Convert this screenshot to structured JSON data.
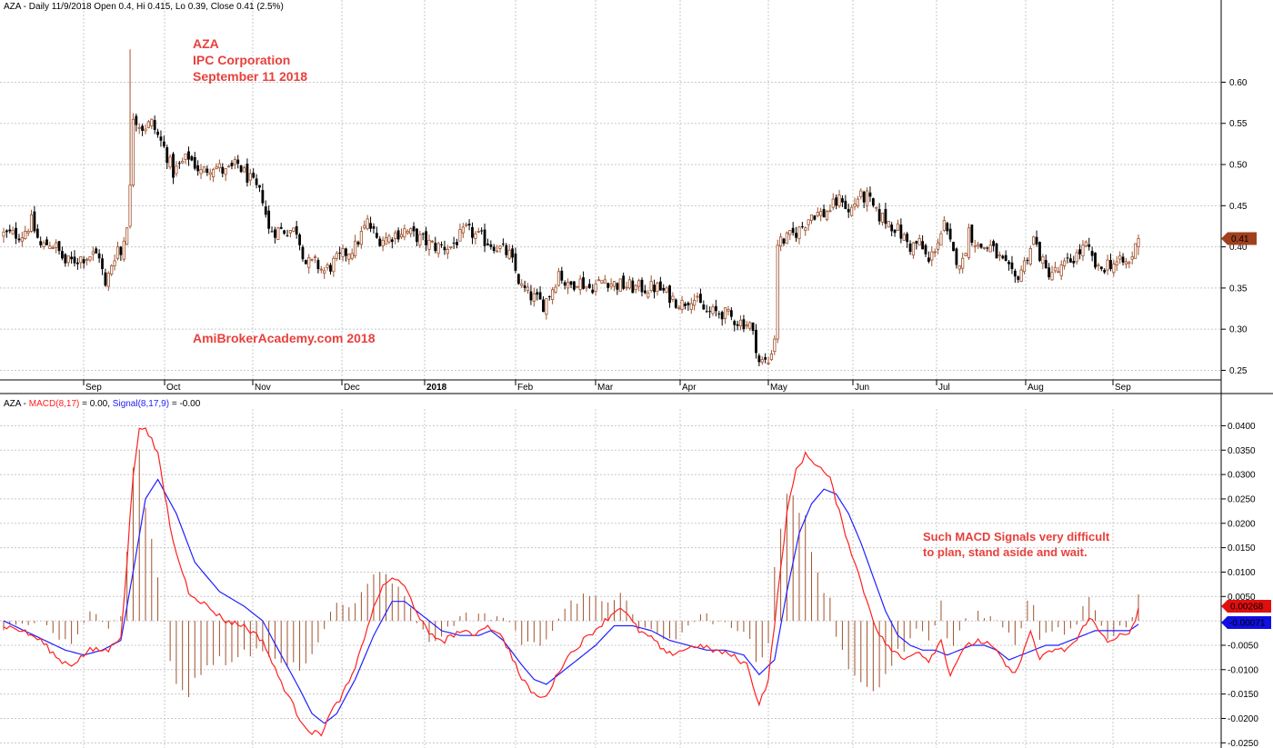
{
  "colors": {
    "candle_up": "#a0522d",
    "candle_down": "#000000",
    "macd": "#ff2020",
    "signal": "#2020ff",
    "histogram": "#a0522d",
    "annotation": "#e8403c",
    "grid": "#c8c8c8",
    "price_tag": "#a0401e",
    "macd_tag": "#e01010",
    "signal_tag": "#1010e0"
  },
  "header": {
    "price_text": "AZA - Daily 11/9/2018 Open 0.4, Hi 0.415, Lo 0.39, Close 0.41 (2.5%)",
    "macd_prefix": "AZA - ",
    "macd_label": "MACD(8,17)",
    "macd_value_text": " = 0.00, ",
    "signal_label": "Signal(8,17,9)",
    "signal_value_text": " = -0.00"
  },
  "annotations": {
    "title_lines": [
      "AZA",
      "IPC Corporation",
      "September 11 2018"
    ],
    "watermark": "AmiBrokerAcademy.com  2018",
    "macd_note_lines": [
      "Such MACD Signals very difficult",
      "to plan, stand aside and wait."
    ]
  },
  "tags": {
    "price": "0.41",
    "macd": "0.00268",
    "signal": "-0.00071"
  },
  "chart_data": [
    {
      "type": "candlestick",
      "title": "AZA - Daily 11/9/2018 Open 0.4, Hi 0.415, Lo 0.39, Close 0.41 (2.5%)",
      "ylim": [
        0.245,
        0.68
      ],
      "y_ticks": [
        "0.25",
        "0.30",
        "0.35",
        "0.40",
        "0.45",
        "0.50",
        "0.55",
        "0.60"
      ],
      "grid": true,
      "x_month_labels": [
        "Sep",
        "Oct",
        "Nov",
        "Dec",
        "2018",
        "Feb",
        "Mar",
        "Apr",
        "May",
        "Jun",
        "Jul",
        "Aug",
        "Sep"
      ],
      "close_anchors": [
        [
          0,
          0.415
        ],
        [
          6,
          0.415
        ],
        [
          9,
          0.43
        ],
        [
          12,
          0.4
        ],
        [
          15,
          0.405
        ],
        [
          17,
          0.4
        ],
        [
          20,
          0.38
        ],
        [
          24,
          0.385
        ],
        [
          28,
          0.39
        ],
        [
          31,
          0.39
        ],
        [
          33,
          0.35
        ],
        [
          35,
          0.38
        ],
        [
          37,
          0.4
        ],
        [
          38,
          0.39
        ],
        [
          40,
          0.43
        ],
        [
          41,
          0.47
        ],
        [
          42,
          0.56
        ],
        [
          45,
          0.545
        ],
        [
          48,
          0.55
        ],
        [
          52,
          0.52
        ],
        [
          55,
          0.49
        ],
        [
          60,
          0.51
        ],
        [
          64,
          0.49
        ],
        [
          68,
          0.5
        ],
        [
          72,
          0.49
        ],
        [
          76,
          0.5
        ],
        [
          80,
          0.48
        ],
        [
          84,
          0.46
        ],
        [
          86,
          0.42
        ],
        [
          90,
          0.42
        ],
        [
          95,
          0.42
        ],
        [
          98,
          0.38
        ],
        [
          101,
          0.38
        ],
        [
          104,
          0.37
        ],
        [
          110,
          0.39
        ],
        [
          114,
          0.4
        ],
        [
          118,
          0.43
        ],
        [
          121,
          0.41
        ],
        [
          124,
          0.41
        ],
        [
          130,
          0.42
        ],
        [
          135,
          0.41
        ],
        [
          140,
          0.4
        ],
        [
          145,
          0.4
        ],
        [
          150,
          0.42
        ],
        [
          155,
          0.41
        ],
        [
          160,
          0.4
        ],
        [
          164,
          0.39
        ],
        [
          168,
          0.35
        ],
        [
          171,
          0.34
        ],
        [
          175,
          0.33
        ],
        [
          178,
          0.35
        ],
        [
          180,
          0.37
        ],
        [
          183,
          0.35
        ],
        [
          186,
          0.36
        ],
        [
          190,
          0.35
        ],
        [
          195,
          0.36
        ],
        [
          198,
          0.355
        ],
        [
          205,
          0.35
        ],
        [
          212,
          0.35
        ],
        [
          216,
          0.34
        ],
        [
          220,
          0.33
        ],
        [
          223,
          0.34
        ],
        [
          228,
          0.32
        ],
        [
          233,
          0.32
        ],
        [
          238,
          0.31
        ],
        [
          242,
          0.305
        ],
        [
          244,
          0.28
        ],
        [
          245,
          0.26
        ],
        [
          248,
          0.26
        ],
        [
          250,
          0.29
        ],
        [
          251,
          0.405
        ],
        [
          254,
          0.41
        ],
        [
          258,
          0.42
        ],
        [
          262,
          0.44
        ],
        [
          266,
          0.44
        ],
        [
          269,
          0.45
        ],
        [
          272,
          0.46
        ],
        [
          274,
          0.44
        ],
        [
          277,
          0.46
        ],
        [
          280,
          0.46
        ],
        [
          283,
          0.44
        ],
        [
          287,
          0.43
        ],
        [
          290,
          0.42
        ],
        [
          294,
          0.4
        ],
        [
          297,
          0.405
        ],
        [
          300,
          0.38
        ],
        [
          302,
          0.4
        ],
        [
          305,
          0.425
        ],
        [
          308,
          0.39
        ],
        [
          311,
          0.38
        ],
        [
          313,
          0.42
        ],
        [
          316,
          0.4
        ],
        [
          320,
          0.4
        ],
        [
          324,
          0.38
        ],
        [
          328,
          0.36
        ],
        [
          331,
          0.38
        ],
        [
          334,
          0.41
        ],
        [
          338,
          0.37
        ],
        [
          342,
          0.37
        ],
        [
          345,
          0.38
        ],
        [
          348,
          0.39
        ],
        [
          351,
          0.4
        ],
        [
          355,
          0.37
        ],
        [
          358,
          0.38
        ],
        [
          361,
          0.38
        ],
        [
          365,
          0.38
        ],
        [
          367,
          0.4
        ],
        [
          368,
          0.41
        ]
      ],
      "last": {
        "date": "11/9/2018",
        "open": 0.4,
        "high": 0.415,
        "low": 0.39,
        "close": 0.41,
        "change_pct": 2.5
      }
    },
    {
      "type": "line",
      "title": "AZA - MACD(8,17) = 0.00, Signal(8,17,9) = -0.00",
      "ylim": [
        -0.0255,
        0.0425
      ],
      "y_ticks": [
        "0.0400",
        "0.0350",
        "0.0300",
        "0.0250",
        "0.0200",
        "0.0150",
        "0.0100",
        "0.0050",
        "-0.0050",
        "-0.0100",
        "-0.0150",
        "-0.0200",
        "-0.0250"
      ],
      "grid": true,
      "series": [
        {
          "name": "MACD(8,17)",
          "anchors": [
            [
              0,
              -0.001
            ],
            [
              6,
              -0.002
            ],
            [
              12,
              -0.004
            ],
            [
              18,
              -0.008
            ],
            [
              22,
              -0.009
            ],
            [
              28,
              -0.006
            ],
            [
              34,
              -0.006
            ],
            [
              38,
              -0.003
            ],
            [
              40,
              0.012
            ],
            [
              42,
              0.03
            ],
            [
              44,
              0.039
            ],
            [
              46,
              0.04
            ],
            [
              50,
              0.034
            ],
            [
              55,
              0.016
            ],
            [
              60,
              0.006
            ],
            [
              66,
              0.003
            ],
            [
              72,
              0.0
            ],
            [
              78,
              -0.001
            ],
            [
              84,
              -0.004
            ],
            [
              88,
              -0.01
            ],
            [
              92,
              -0.015
            ],
            [
              96,
              -0.02
            ],
            [
              100,
              -0.023
            ],
            [
              103,
              -0.023
            ],
            [
              106,
              -0.019
            ],
            [
              110,
              -0.015
            ],
            [
              114,
              -0.01
            ],
            [
              118,
              -0.001
            ],
            [
              122,
              0.006
            ],
            [
              126,
              0.009
            ],
            [
              130,
              0.007
            ],
            [
              134,
              0.002
            ],
            [
              138,
              -0.003
            ],
            [
              143,
              -0.004
            ],
            [
              148,
              -0.002
            ],
            [
              152,
              -0.003
            ],
            [
              156,
              -0.001
            ],
            [
              160,
              -0.002
            ],
            [
              164,
              -0.006
            ],
            [
              168,
              -0.012
            ],
            [
              172,
              -0.015
            ],
            [
              175,
              -0.016
            ],
            [
              178,
              -0.013
            ],
            [
              182,
              -0.008
            ],
            [
              188,
              -0.004
            ],
            [
              195,
              0.0
            ],
            [
              200,
              0.003
            ],
            [
              206,
              -0.002
            ],
            [
              211,
              -0.004
            ],
            [
              215,
              -0.007
            ],
            [
              220,
              -0.006
            ],
            [
              225,
              -0.005
            ],
            [
              230,
              -0.006
            ],
            [
              236,
              -0.007
            ],
            [
              241,
              -0.009
            ],
            [
              245,
              -0.017
            ],
            [
              248,
              -0.012
            ],
            [
              251,
              0.005
            ],
            [
              254,
              0.022
            ],
            [
              257,
              0.031
            ],
            [
              260,
              0.034
            ],
            [
              264,
              0.032
            ],
            [
              268,
              0.029
            ],
            [
              272,
              0.02
            ],
            [
              276,
              0.012
            ],
            [
              280,
              0.004
            ],
            [
              284,
              -0.003
            ],
            [
              288,
              -0.006
            ],
            [
              292,
              -0.008
            ],
            [
              296,
              -0.006
            ],
            [
              300,
              -0.008
            ],
            [
              304,
              -0.004
            ],
            [
              307,
              -0.011
            ],
            [
              310,
              -0.007
            ],
            [
              313,
              -0.005
            ],
            [
              316,
              -0.004
            ],
            [
              320,
              -0.005
            ],
            [
              324,
              -0.008
            ],
            [
              327,
              -0.011
            ],
            [
              330,
              -0.008
            ],
            [
              333,
              -0.002
            ],
            [
              336,
              -0.008
            ],
            [
              340,
              -0.006
            ],
            [
              344,
              -0.006
            ],
            [
              348,
              -0.004
            ],
            [
              352,
              0.001
            ],
            [
              355,
              -0.002
            ],
            [
              358,
              -0.004
            ],
            [
              362,
              -0.003
            ],
            [
              365,
              -0.003
            ],
            [
              367,
              0.0
            ],
            [
              368,
              0.00268
            ]
          ]
        },
        {
          "name": "Signal(8,17,9)",
          "anchors": [
            [
              0,
              0.0
            ],
            [
              10,
              -0.003
            ],
            [
              20,
              -0.006
            ],
            [
              26,
              -0.007
            ],
            [
              32,
              -0.006
            ],
            [
              38,
              -0.004
            ],
            [
              42,
              0.01
            ],
            [
              46,
              0.025
            ],
            [
              50,
              0.029
            ],
            [
              56,
              0.022
            ],
            [
              62,
              0.012
            ],
            [
              70,
              0.006
            ],
            [
              78,
              0.003
            ],
            [
              84,
              0.0
            ],
            [
              90,
              -0.007
            ],
            [
              96,
              -0.014
            ],
            [
              100,
              -0.019
            ],
            [
              104,
              -0.021
            ],
            [
              108,
              -0.019
            ],
            [
              114,
              -0.012
            ],
            [
              120,
              -0.003
            ],
            [
              126,
              0.004
            ],
            [
              130,
              0.004
            ],
            [
              136,
              0.001
            ],
            [
              142,
              -0.002
            ],
            [
              148,
              -0.003
            ],
            [
              154,
              -0.003
            ],
            [
              158,
              -0.002
            ],
            [
              162,
              -0.004
            ],
            [
              168,
              -0.009
            ],
            [
              172,
              -0.012
            ],
            [
              176,
              -0.013
            ],
            [
              180,
              -0.011
            ],
            [
              186,
              -0.008
            ],
            [
              192,
              -0.005
            ],
            [
              198,
              -0.001
            ],
            [
              204,
              -0.001
            ],
            [
              210,
              -0.002
            ],
            [
              216,
              -0.004
            ],
            [
              222,
              -0.005
            ],
            [
              228,
              -0.006
            ],
            [
              234,
              -0.006
            ],
            [
              240,
              -0.007
            ],
            [
              245,
              -0.011
            ],
            [
              250,
              -0.008
            ],
            [
              254,
              0.006
            ],
            [
              258,
              0.018
            ],
            [
              262,
              0.024
            ],
            [
              266,
              0.027
            ],
            [
              270,
              0.026
            ],
            [
              274,
              0.022
            ],
            [
              278,
              0.016
            ],
            [
              282,
              0.009
            ],
            [
              286,
              0.002
            ],
            [
              290,
              -0.003
            ],
            [
              294,
              -0.005
            ],
            [
              298,
              -0.006
            ],
            [
              302,
              -0.006
            ],
            [
              306,
              -0.007
            ],
            [
              310,
              -0.006
            ],
            [
              314,
              -0.005
            ],
            [
              318,
              -0.005
            ],
            [
              322,
              -0.006
            ],
            [
              326,
              -0.008
            ],
            [
              330,
              -0.007
            ],
            [
              334,
              -0.006
            ],
            [
              338,
              -0.005
            ],
            [
              342,
              -0.005
            ],
            [
              346,
              -0.004
            ],
            [
              350,
              -0.003
            ],
            [
              354,
              -0.002
            ],
            [
              358,
              -0.002
            ],
            [
              362,
              -0.002
            ],
            [
              365,
              -0.002
            ],
            [
              368,
              -0.00071
            ]
          ]
        }
      ]
    }
  ]
}
